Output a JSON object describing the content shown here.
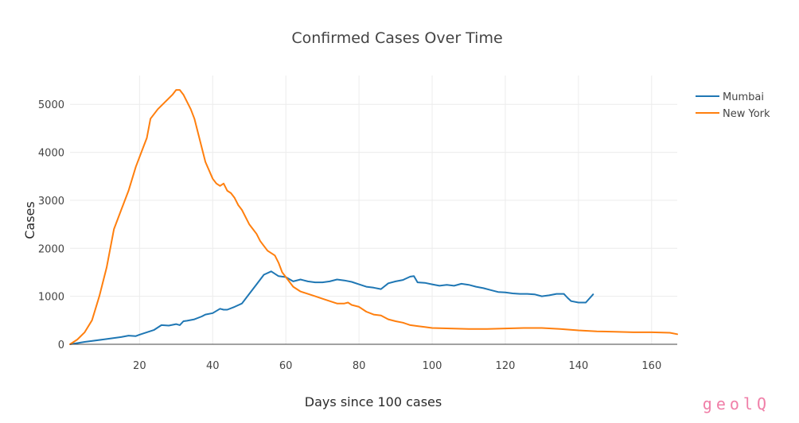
{
  "chart_data": {
    "type": "line",
    "title": "Confirmed Cases Over Time",
    "xlabel": "Days since 100 cases",
    "ylabel": "Cases",
    "xlim": [
      1,
      167
    ],
    "ylim": [
      0,
      5600
    ],
    "xticks": [
      20,
      40,
      60,
      80,
      100,
      120,
      140,
      160
    ],
    "yticks": [
      0,
      1000,
      2000,
      3000,
      4000,
      5000
    ],
    "grid": true,
    "legend_position": "top-right",
    "series": [
      {
        "name": "Mumbai",
        "color": "#1f77b4",
        "x": [
          1,
          5,
          10,
          15,
          17,
          19,
          20,
          22,
          24,
          26,
          28,
          30,
          31,
          32,
          33,
          35,
          37,
          38,
          40,
          42,
          43,
          44,
          46,
          48,
          50,
          52,
          54,
          56,
          58,
          60,
          62,
          64,
          66,
          68,
          70,
          72,
          74,
          76,
          78,
          80,
          82,
          84,
          86,
          88,
          90,
          92,
          94,
          95,
          96,
          98,
          100,
          102,
          104,
          106,
          108,
          110,
          112,
          114,
          116,
          118,
          120,
          122,
          124,
          126,
          128,
          130,
          132,
          134,
          136,
          137,
          138,
          140,
          142,
          144
        ],
        "y": [
          0,
          50,
          100,
          150,
          180,
          170,
          200,
          250,
          300,
          400,
          390,
          420,
          400,
          480,
          490,
          520,
          580,
          620,
          650,
          740,
          720,
          720,
          780,
          850,
          1050,
          1250,
          1450,
          1520,
          1420,
          1400,
          1310,
          1350,
          1310,
          1290,
          1290,
          1310,
          1350,
          1330,
          1300,
          1250,
          1200,
          1180,
          1150,
          1270,
          1310,
          1340,
          1410,
          1420,
          1290,
          1280,
          1250,
          1220,
          1240,
          1220,
          1260,
          1240,
          1200,
          1170,
          1130,
          1090,
          1080,
          1060,
          1050,
          1050,
          1040,
          1000,
          1020,
          1050,
          1050,
          970,
          900,
          870,
          870,
          1040
        ]
      },
      {
        "name": "New York",
        "color": "#ff7f0e",
        "x": [
          1,
          3,
          5,
          7,
          9,
          11,
          13,
          15,
          17,
          19,
          21,
          22,
          23,
          25,
          27,
          29,
          30,
          31,
          32,
          33,
          34,
          35,
          36,
          37,
          38,
          40,
          41,
          42,
          43,
          44,
          45,
          46,
          47,
          48,
          50,
          51,
          52,
          53,
          54,
          55,
          56,
          57,
          58,
          59,
          60,
          62,
          64,
          66,
          68,
          70,
          72,
          74,
          76,
          77,
          78,
          80,
          82,
          84,
          86,
          88,
          90,
          92,
          94,
          96,
          98,
          100,
          105,
          110,
          115,
          120,
          125,
          130,
          135,
          140,
          145,
          150,
          155,
          160,
          165,
          167
        ],
        "y": [
          0,
          100,
          250,
          500,
          1000,
          1600,
          2400,
          2800,
          3200,
          3700,
          4100,
          4300,
          4700,
          4900,
          5050,
          5200,
          5300,
          5300,
          5200,
          5050,
          4900,
          4700,
          4400,
          4100,
          3800,
          3450,
          3350,
          3300,
          3350,
          3200,
          3150,
          3050,
          2900,
          2800,
          2500,
          2400,
          2300,
          2150,
          2050,
          1950,
          1900,
          1850,
          1700,
          1500,
          1400,
          1200,
          1100,
          1050,
          1000,
          950,
          900,
          850,
          850,
          870,
          820,
          780,
          680,
          620,
          600,
          520,
          480,
          450,
          400,
          380,
          360,
          340,
          330,
          320,
          320,
          330,
          340,
          340,
          320,
          290,
          270,
          260,
          250,
          250,
          240,
          210
        ]
      }
    ]
  },
  "watermark": "geolQ"
}
